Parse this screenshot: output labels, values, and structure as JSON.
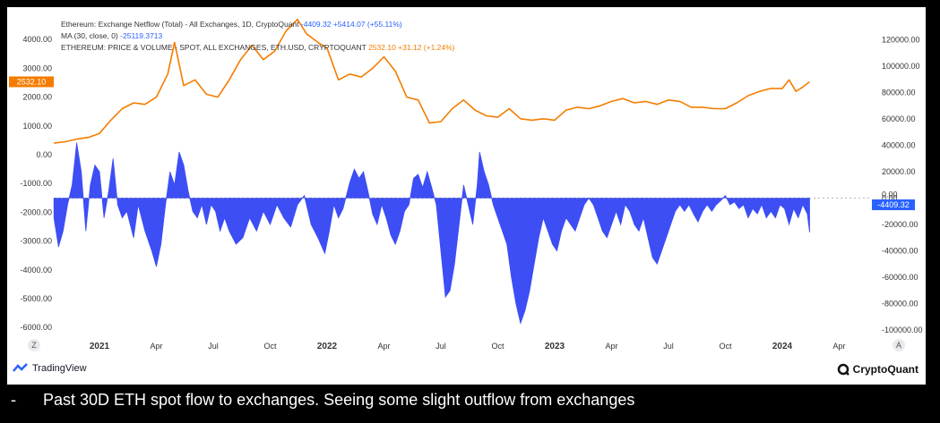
{
  "legend": {
    "netflow_title": "Ethereum: Exchange Netflow (Total) - All Exchanges, 1D, CryptoQuant",
    "netflow_value": "-4409.32",
    "netflow_change": "+5414.07 (+55.11%)",
    "ma_title": "MA (30, close, 0)",
    "ma_value": "-25119.3713",
    "price_title": "ETHEREUM: PRICE & VOLUME - SPOT, ALL EXCHANGES, ETH.USD, CRYPTOQUANT",
    "price_value": "2532.10",
    "price_change": "+31.12 (+1.24%)"
  },
  "branding": {
    "left": "TradingView",
    "right": "CryptoQuant"
  },
  "footer": {
    "dash": "-",
    "text": "Past 30D ETH spot flow to exchanges. Seeing some slight outflow from exchanges"
  },
  "colors": {
    "price": "#f57c00",
    "netflow": "#3d4ef5",
    "badge_blue": "#2962ff"
  },
  "chart_data": {
    "type": "area",
    "title": "Ethereum: Exchange Netflow (Total) - All Exchanges, 1D, CryptoQuant",
    "left_axis": {
      "ticks": [
        4000,
        3000,
        2000,
        1000,
        0,
        -1000,
        -2000,
        -3000,
        -4000,
        -5000,
        -6000
      ],
      "labels": [
        "4000.00",
        "3000.00",
        "2000.00",
        "1000.00",
        "0.00",
        "-1000.00",
        "-2000.00",
        "-3000.00",
        "-4000.00",
        "-5000.00",
        "-6000.00"
      ]
    },
    "right_axis": {
      "ticks": [
        120000,
        100000,
        80000,
        60000,
        40000,
        20000,
        0,
        -20000,
        -40000,
        -60000,
        -80000,
        -100000
      ],
      "labels": [
        "120000.00",
        "100000.00",
        "80000.00",
        "60000.00",
        "40000.00",
        "20000.00",
        "0.00",
        "-20000.00",
        "-40000.00",
        "-60000.00",
        "-80000.00",
        "-100000.00"
      ]
    },
    "x_ticks": [
      {
        "t": 2021.0,
        "label": "2021",
        "bold": true
      },
      {
        "t": 2021.25,
        "label": "Apr"
      },
      {
        "t": 2021.5,
        "label": "Jul"
      },
      {
        "t": 2021.75,
        "label": "Oct"
      },
      {
        "t": 2022.0,
        "label": "2022",
        "bold": true
      },
      {
        "t": 2022.25,
        "label": "Apr"
      },
      {
        "t": 2022.5,
        "label": "Jul"
      },
      {
        "t": 2022.75,
        "label": "Oct"
      },
      {
        "t": 2023.0,
        "label": "2023",
        "bold": true
      },
      {
        "t": 2023.25,
        "label": "Apr"
      },
      {
        "t": 2023.5,
        "label": "Jul"
      },
      {
        "t": 2023.75,
        "label": "Oct"
      },
      {
        "t": 2024.0,
        "label": "2024",
        "bold": true
      },
      {
        "t": 2024.25,
        "label": "Apr"
      }
    ],
    "axis_end_labels": [
      "Z",
      "A"
    ],
    "price_badge": "2532.10",
    "netflow_badge": "-4409.32",
    "zero_badge": "0.00",
    "series": [
      {
        "name": "ETH Price (USD, left axis)",
        "type": "line",
        "points": [
          [
            2020.8,
            400
          ],
          [
            2020.85,
            450
          ],
          [
            2020.9,
            540
          ],
          [
            2020.95,
            600
          ],
          [
            2021.0,
            740
          ],
          [
            2021.05,
            1200
          ],
          [
            2021.1,
            1600
          ],
          [
            2021.15,
            1800
          ],
          [
            2021.2,
            1750
          ],
          [
            2021.25,
            2000
          ],
          [
            2021.3,
            2800
          ],
          [
            2021.33,
            3900
          ],
          [
            2021.37,
            2400
          ],
          [
            2021.42,
            2600
          ],
          [
            2021.47,
            2100
          ],
          [
            2021.52,
            2000
          ],
          [
            2021.57,
            2600
          ],
          [
            2021.62,
            3300
          ],
          [
            2021.67,
            3800
          ],
          [
            2021.72,
            3300
          ],
          [
            2021.77,
            3600
          ],
          [
            2021.82,
            4300
          ],
          [
            2021.87,
            4700
          ],
          [
            2021.91,
            4200
          ],
          [
            2021.96,
            3900
          ],
          [
            2022.0,
            3700
          ],
          [
            2022.05,
            2600
          ],
          [
            2022.1,
            2800
          ],
          [
            2022.15,
            2700
          ],
          [
            2022.2,
            3000
          ],
          [
            2022.25,
            3400
          ],
          [
            2022.3,
            2900
          ],
          [
            2022.35,
            2000
          ],
          [
            2022.4,
            1900
          ],
          [
            2022.45,
            1100
          ],
          [
            2022.5,
            1150
          ],
          [
            2022.55,
            1600
          ],
          [
            2022.6,
            1900
          ],
          [
            2022.65,
            1550
          ],
          [
            2022.7,
            1350
          ],
          [
            2022.75,
            1300
          ],
          [
            2022.8,
            1600
          ],
          [
            2022.85,
            1250
          ],
          [
            2022.9,
            1200
          ],
          [
            2022.95,
            1250
          ],
          [
            2023.0,
            1200
          ],
          [
            2023.05,
            1550
          ],
          [
            2023.1,
            1650
          ],
          [
            2023.15,
            1600
          ],
          [
            2023.2,
            1700
          ],
          [
            2023.25,
            1850
          ],
          [
            2023.3,
            1950
          ],
          [
            2023.35,
            1800
          ],
          [
            2023.4,
            1850
          ],
          [
            2023.45,
            1750
          ],
          [
            2023.5,
            1900
          ],
          [
            2023.55,
            1850
          ],
          [
            2023.6,
            1650
          ],
          [
            2023.65,
            1650
          ],
          [
            2023.7,
            1600
          ],
          [
            2023.75,
            1600
          ],
          [
            2023.8,
            1800
          ],
          [
            2023.85,
            2050
          ],
          [
            2023.9,
            2200
          ],
          [
            2023.95,
            2300
          ],
          [
            2024.0,
            2300
          ],
          [
            2024.03,
            2600
          ],
          [
            2024.06,
            2200
          ],
          [
            2024.09,
            2350
          ],
          [
            2024.12,
            2532
          ]
        ]
      },
      {
        "name": "Exchange Netflow MA30 (right axis)",
        "type": "area",
        "points": [
          [
            2020.8,
            -15000
          ],
          [
            2020.82,
            -37000
          ],
          [
            2020.84,
            -25000
          ],
          [
            2020.86,
            -5000
          ],
          [
            2020.88,
            10000
          ],
          [
            2020.9,
            42000
          ],
          [
            2020.92,
            20000
          ],
          [
            2020.94,
            -25000
          ],
          [
            2020.96,
            10000
          ],
          [
            2020.98,
            25000
          ],
          [
            2021.0,
            20000
          ],
          [
            2021.02,
            -15000
          ],
          [
            2021.04,
            5000
          ],
          [
            2021.06,
            30000
          ],
          [
            2021.08,
            -5000
          ],
          [
            2021.1,
            -15000
          ],
          [
            2021.12,
            -10000
          ],
          [
            2021.15,
            -30000
          ],
          [
            2021.17,
            -5000
          ],
          [
            2021.2,
            -25000
          ],
          [
            2021.23,
            -40000
          ],
          [
            2021.25,
            -52000
          ],
          [
            2021.27,
            -35000
          ],
          [
            2021.29,
            -5000
          ],
          [
            2021.31,
            20000
          ],
          [
            2021.33,
            10000
          ],
          [
            2021.35,
            35000
          ],
          [
            2021.37,
            25000
          ],
          [
            2021.39,
            5000
          ],
          [
            2021.41,
            -10000
          ],
          [
            2021.43,
            -15000
          ],
          [
            2021.45,
            -5000
          ],
          [
            2021.47,
            -20000
          ],
          [
            2021.49,
            -5000
          ],
          [
            2021.51,
            -10000
          ],
          [
            2021.53,
            -25000
          ],
          [
            2021.55,
            -15000
          ],
          [
            2021.57,
            -25000
          ],
          [
            2021.6,
            -35000
          ],
          [
            2021.63,
            -30000
          ],
          [
            2021.66,
            -15000
          ],
          [
            2021.69,
            -25000
          ],
          [
            2021.72,
            -10000
          ],
          [
            2021.75,
            -20000
          ],
          [
            2021.78,
            -5000
          ],
          [
            2021.81,
            -15000
          ],
          [
            2021.84,
            -22000
          ],
          [
            2021.87,
            -5000
          ],
          [
            2021.9,
            2000
          ],
          [
            2021.93,
            -20000
          ],
          [
            2021.96,
            -30000
          ],
          [
            2021.99,
            -42000
          ],
          [
            2022.01,
            -25000
          ],
          [
            2022.03,
            -5000
          ],
          [
            2022.05,
            -15000
          ],
          [
            2022.07,
            -8000
          ],
          [
            2022.1,
            12000
          ],
          [
            2022.12,
            22000
          ],
          [
            2022.14,
            15000
          ],
          [
            2022.16,
            20000
          ],
          [
            2022.18,
            5000
          ],
          [
            2022.2,
            -12000
          ],
          [
            2022.22,
            -20000
          ],
          [
            2022.24,
            -5000
          ],
          [
            2022.26,
            -15000
          ],
          [
            2022.28,
            -28000
          ],
          [
            2022.3,
            -35000
          ],
          [
            2022.32,
            -25000
          ],
          [
            2022.34,
            -10000
          ],
          [
            2022.36,
            -5000
          ],
          [
            2022.38,
            15000
          ],
          [
            2022.4,
            18000
          ],
          [
            2022.42,
            8000
          ],
          [
            2022.44,
            20000
          ],
          [
            2022.46,
            8000
          ],
          [
            2022.48,
            -5000
          ],
          [
            2022.5,
            -40000
          ],
          [
            2022.52,
            -75000
          ],
          [
            2022.54,
            -70000
          ],
          [
            2022.56,
            -50000
          ],
          [
            2022.58,
            -20000
          ],
          [
            2022.6,
            10000
          ],
          [
            2022.62,
            -5000
          ],
          [
            2022.64,
            -20000
          ],
          [
            2022.66,
            10000
          ],
          [
            2022.67,
            35000
          ],
          [
            2022.69,
            20000
          ],
          [
            2022.71,
            10000
          ],
          [
            2022.73,
            -5000
          ],
          [
            2022.75,
            -15000
          ],
          [
            2022.77,
            -25000
          ],
          [
            2022.79,
            -35000
          ],
          [
            2022.81,
            -60000
          ],
          [
            2022.83,
            -80000
          ],
          [
            2022.85,
            -95000
          ],
          [
            2022.87,
            -85000
          ],
          [
            2022.89,
            -70000
          ],
          [
            2022.91,
            -50000
          ],
          [
            2022.93,
            -30000
          ],
          [
            2022.95,
            -15000
          ],
          [
            2022.97,
            -25000
          ],
          [
            2022.99,
            -35000
          ],
          [
            2023.01,
            -40000
          ],
          [
            2023.03,
            -25000
          ],
          [
            2023.05,
            -15000
          ],
          [
            2023.07,
            -20000
          ],
          [
            2023.09,
            -25000
          ],
          [
            2023.11,
            -15000
          ],
          [
            2023.13,
            -5000
          ],
          [
            2023.15,
            0
          ],
          [
            2023.17,
            -5000
          ],
          [
            2023.19,
            -15000
          ],
          [
            2023.21,
            -25000
          ],
          [
            2023.23,
            -30000
          ],
          [
            2023.25,
            -20000
          ],
          [
            2023.27,
            -10000
          ],
          [
            2023.29,
            -20000
          ],
          [
            2023.31,
            -5000
          ],
          [
            2023.33,
            -10000
          ],
          [
            2023.35,
            -20000
          ],
          [
            2023.37,
            -25000
          ],
          [
            2023.39,
            -15000
          ],
          [
            2023.41,
            -30000
          ],
          [
            2023.43,
            -45000
          ],
          [
            2023.45,
            -50000
          ],
          [
            2023.47,
            -40000
          ],
          [
            2023.49,
            -30000
          ],
          [
            2023.51,
            -20000
          ],
          [
            2023.53,
            -10000
          ],
          [
            2023.55,
            -5000
          ],
          [
            2023.57,
            -10000
          ],
          [
            2023.59,
            -5000
          ],
          [
            2023.61,
            -12000
          ],
          [
            2023.63,
            -18000
          ],
          [
            2023.65,
            -10000
          ],
          [
            2023.67,
            -5000
          ],
          [
            2023.69,
            -10000
          ],
          [
            2023.71,
            -5000
          ],
          [
            2023.73,
            -2000
          ],
          [
            2023.75,
            2000
          ],
          [
            2023.77,
            -5000
          ],
          [
            2023.79,
            -3000
          ],
          [
            2023.81,
            -8000
          ],
          [
            2023.83,
            -5000
          ],
          [
            2023.85,
            -15000
          ],
          [
            2023.87,
            -8000
          ],
          [
            2023.89,
            -12000
          ],
          [
            2023.91,
            -5000
          ],
          [
            2023.93,
            -15000
          ],
          [
            2023.95,
            -10000
          ],
          [
            2023.97,
            -15000
          ],
          [
            2023.99,
            -5000
          ],
          [
            2024.01,
            -8000
          ],
          [
            2024.03,
            -20000
          ],
          [
            2024.05,
            -8000
          ],
          [
            2024.07,
            -15000
          ],
          [
            2024.09,
            -5000
          ],
          [
            2024.11,
            -12000
          ],
          [
            2024.12,
            -26000
          ]
        ]
      }
    ]
  }
}
